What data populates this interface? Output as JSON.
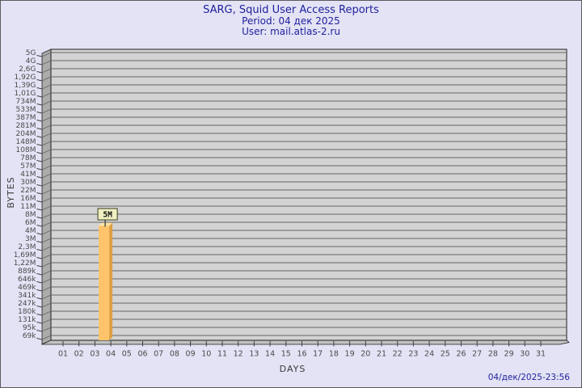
{
  "page": {
    "background": "#E3E3F5",
    "border_color": "#5A5A5E"
  },
  "header": {
    "title": "SARG, Squid User Access Reports",
    "period": "Period: 04 дек 2025",
    "user": "User: mail.atlas-2.ru",
    "text_color": "#1F1F9C"
  },
  "footer": {
    "timestamp": "04/дек/2025-23:56",
    "text_color": "#1F1F9C"
  },
  "chart_data": {
    "type": "bar",
    "title": "SARG, Squid User Access Reports",
    "subtitle_lines": [
      "Period: 04 дек 2025",
      "User: mail.atlas-2.ru"
    ],
    "xlabel": "DAYS",
    "ylabel": "BYTES",
    "scale": "log",
    "grid": true,
    "legend": false,
    "style": "3d-bar",
    "categories": [
      "01",
      "02",
      "03",
      "04",
      "05",
      "06",
      "07",
      "08",
      "09",
      "10",
      "11",
      "12",
      "13",
      "14",
      "15",
      "16",
      "17",
      "18",
      "19",
      "20",
      "21",
      "22",
      "23",
      "24",
      "25",
      "26",
      "27",
      "28",
      "29",
      "30",
      "31"
    ],
    "values": [
      0,
      0,
      0,
      5000000,
      0,
      0,
      0,
      0,
      0,
      0,
      0,
      0,
      0,
      0,
      0,
      0,
      0,
      0,
      0,
      0,
      0,
      0,
      0,
      0,
      0,
      0,
      0,
      0,
      0,
      0,
      0
    ],
    "value_labels": [
      "",
      "",
      "",
      "5M",
      "",
      "",
      "",
      "",
      "",
      "",
      "",
      "",
      "",
      "",
      "",
      "",
      "",
      "",
      "",
      "",
      "",
      "",
      "",
      "",
      "",
      "",
      "",
      "",
      "",
      "",
      ""
    ],
    "y_tick_labels": [
      "5G",
      "4G",
      "2,6G",
      "1,92G",
      "1,39G",
      "1,01G",
      "734M",
      "533M",
      "387M",
      "281M",
      "204M",
      "148M",
      "108M",
      "78M",
      "57M",
      "41M",
      "30M",
      "22M",
      "16M",
      "11M",
      "8M",
      "6M",
      "4M",
      "3M",
      "2,3M",
      "1,69M",
      "1,22M",
      "889k",
      "646k",
      "469k",
      "341k",
      "247k",
      "180k",
      "131k",
      "95k",
      "69k"
    ],
    "colors": {
      "bar_front": "#FFC469",
      "bar_side": "#DE9F43",
      "bar_top": "#FFE3A4",
      "bar_label_bg": "#EFEFC1",
      "bar_label_border": "#3F3F1F",
      "plot_bg": "#D3D3D3",
      "wall": "#ABABAB",
      "floor": "#C2C2C2",
      "gridline": "#666666",
      "frame": "#1E1E1E",
      "tick_text": "#4A4A4A",
      "axis_title": "#3A3A3A"
    }
  }
}
